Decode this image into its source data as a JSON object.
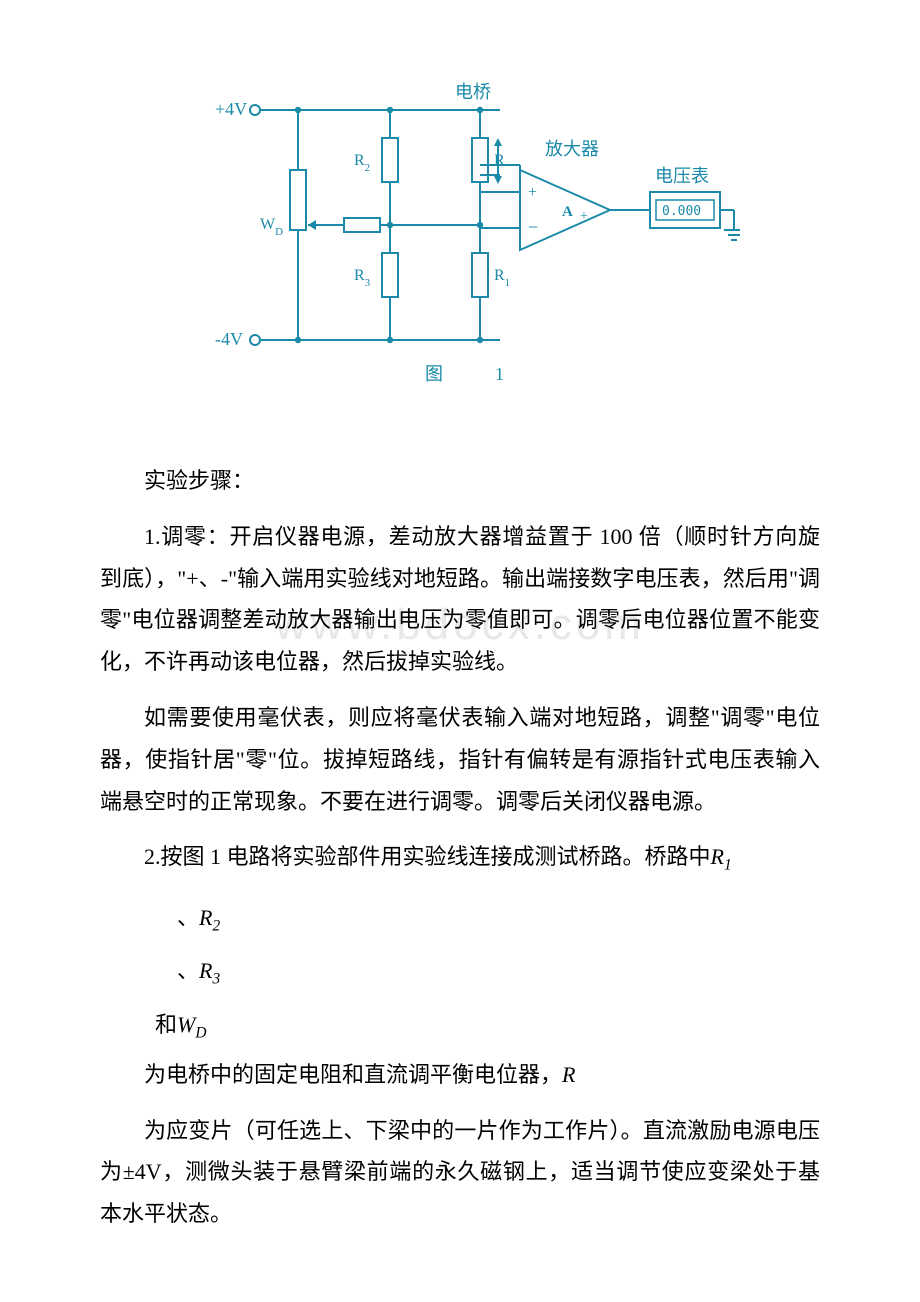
{
  "watermark": "www.bdocx.com",
  "circuit": {
    "pos_rail": "+4V",
    "neg_rail": "-4V",
    "bridge_label": "电桥",
    "amp_label": "放大器",
    "meter_label": "电压表",
    "meter_value": "0.000",
    "amp_pos": "+",
    "amp_neg": "−",
    "amp_letter": "A",
    "r": "R",
    "r1": "R",
    "r1_sub": "1",
    "r2": "R",
    "r2_sub": "2",
    "r3": "R",
    "r3_sub": "3",
    "wd": "W",
    "wd_sub": "D",
    "fig_label_a": "图",
    "fig_label_b": "1",
    "stroke": "#1a8aa8",
    "text_color": "#1a8aa8",
    "bg": "#ffffff",
    "font_family": "SimSun, serif",
    "font_size_label": 18,
    "font_size_node": 16
  },
  "text": {
    "heading_steps": "实验步骤：",
    "p1": "1.调零：开启仪器电源，差动放大器增益置于 100 倍（顺时针方向旋到底），\"+、-\"输入端用实验线对地短路。输出端接数字电压表，然后用\"调零\"电位器调整差动放大器输出电压为零值即可。调零后电位器位置不能变化，不许再动该电位器，然后拔掉实验线。",
    "p2": "如需要使用毫伏表，则应将毫伏表输入端对地短路，调整\"调零\"电位器，使指针居\"零\"位。拔掉短路线，指针有偏转是有源指针式电压表输入端悬空时的正常现象。不要在进行调零。调零后关闭仪器电源。",
    "p3a": "2.按图 1 电路将实验部件用实验线连接成测试桥路。桥路中",
    "v_R1": "R",
    "v_R1s": "1",
    "v_R2": "R",
    "v_R2s": "2",
    "v_R3": "R",
    "v_R3s": "3",
    "v_Wd": "W",
    "v_Wds": "D",
    "sep": "、",
    "and": "和",
    "p3b": "为电桥中的固定电阻和直流调平衡电位器，",
    "v_R": "R",
    "p4": "为应变片（可任选上、下梁中的一片作为工作片）。直流激励电源电压为±4V，测微头装于悬臂梁前端的永久磁钢上，适当调节使应变梁处于基本水平状态。"
  }
}
